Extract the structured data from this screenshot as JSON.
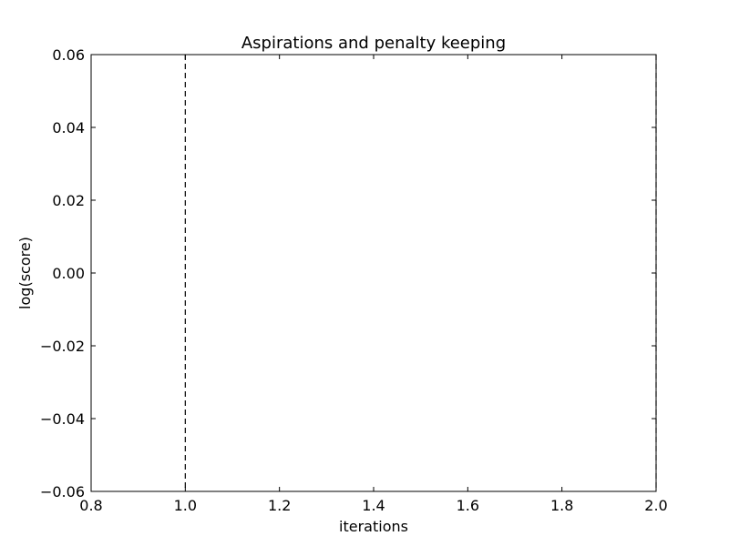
{
  "chart_data": {
    "type": "line",
    "title": "Aspirations and penalty keeping",
    "xlabel": "iterations",
    "ylabel": "log(score)",
    "xlim": [
      0.8,
      2.0
    ],
    "ylim": [
      -0.06,
      0.06
    ],
    "x_ticks": [
      0.8,
      1.0,
      1.2,
      1.4,
      1.6,
      1.8,
      2.0
    ],
    "x_tick_labels": [
      "0.8",
      "1.0",
      "1.2",
      "1.4",
      "1.6",
      "1.8",
      "2.0"
    ],
    "y_ticks": [
      -0.06,
      -0.04,
      -0.02,
      0.0,
      0.02,
      0.04,
      0.06
    ],
    "y_tick_labels": [
      "−0.06",
      "−0.04",
      "−0.02",
      "0.00",
      "0.02",
      "0.04",
      "0.06"
    ],
    "grid": false,
    "series": [],
    "vertical_lines": [
      {
        "x": 1.0,
        "style": "dashed",
        "color": "#000000"
      },
      {
        "x": 2.0,
        "style": "dashed",
        "color": "#000000"
      }
    ]
  }
}
